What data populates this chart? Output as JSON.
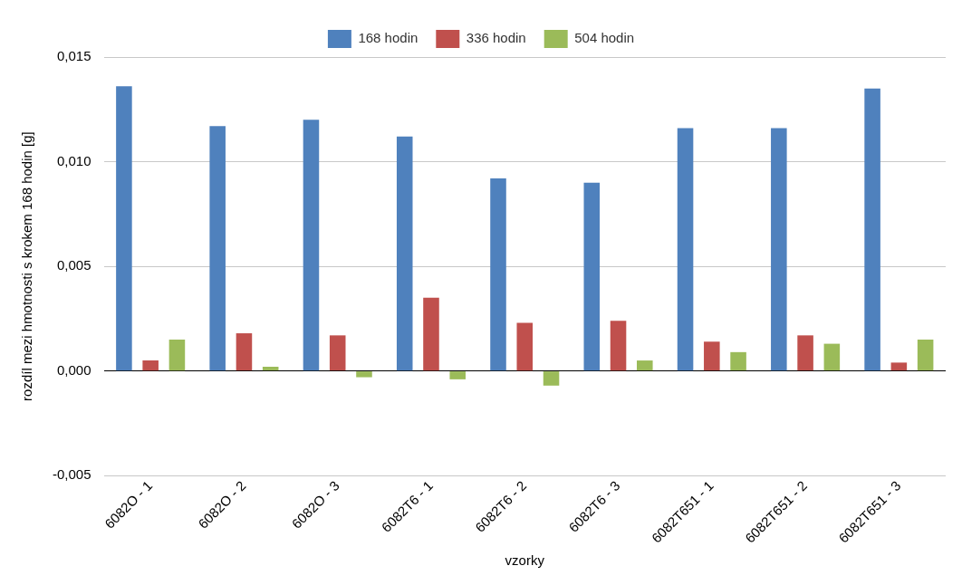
{
  "chart_data": {
    "type": "bar",
    "xlabel": "vzorky",
    "ylabel": "rozdíl mezi hmotnosti s krokem 168 hodin [g]",
    "categories": [
      "6082O - 1",
      "6082O - 2",
      "6082O - 3",
      "6082T6 - 1",
      "6082T6 - 2",
      "6082T6 - 3",
      "6082T651 - 1",
      "6082T651 - 2",
      "6082T651 - 3"
    ],
    "series": [
      {
        "name": "168 hodin",
        "color": "#4f81bd",
        "values": [
          0.0136,
          0.0117,
          0.012,
          0.0112,
          0.0092,
          0.009,
          0.0116,
          0.0116,
          0.0135
        ]
      },
      {
        "name": "336 hodin",
        "color": "#c0504d",
        "values": [
          0.0005,
          0.0018,
          0.0017,
          0.0035,
          0.0023,
          0.0024,
          0.0014,
          0.0017,
          0.0004
        ]
      },
      {
        "name": "504 hodin",
        "color": "#9bbb59",
        "values": [
          0.0015,
          0.0002,
          -0.0003,
          -0.0004,
          -0.0007,
          0.0005,
          0.0009,
          0.0013,
          0.0015
        ]
      }
    ],
    "ylim": [
      -0.005,
      0.015
    ],
    "yticks": [
      {
        "value": -0.005,
        "label": "-0,005"
      },
      {
        "value": 0,
        "label": "0,000"
      },
      {
        "value": 0.005,
        "label": "0,005"
      },
      {
        "value": 0.01,
        "label": "0,010"
      },
      {
        "value": 0.015,
        "label": "0,015"
      }
    ],
    "grid": "y",
    "legend": "top"
  }
}
